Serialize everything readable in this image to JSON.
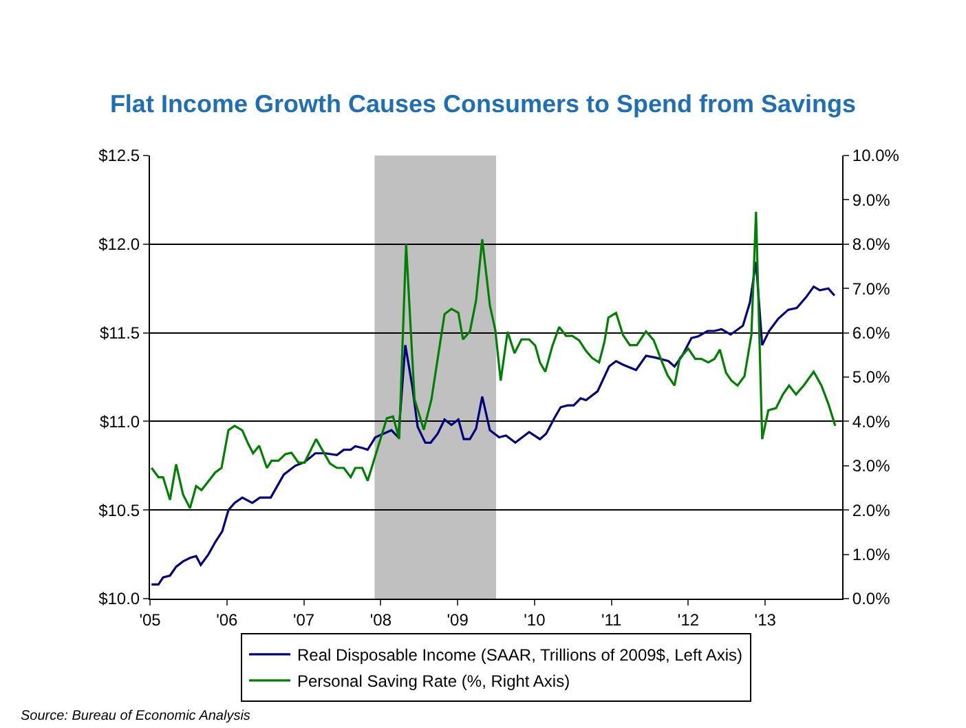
{
  "chart_data": {
    "type": "line",
    "title": "Flat Income Growth Causes Consumers to Spend from Savings",
    "xlim": [
      2005,
      2014
    ],
    "xticks": [
      {
        "value": 2005,
        "label": "'05"
      },
      {
        "value": 2006,
        "label": "'06"
      },
      {
        "value": 2007,
        "label": "'07"
      },
      {
        "value": 2008,
        "label": "'08"
      },
      {
        "value": 2009,
        "label": "'09"
      },
      {
        "value": 2010,
        "label": "'10"
      },
      {
        "value": 2011,
        "label": "'11"
      },
      {
        "value": 2012,
        "label": "'12"
      },
      {
        "value": 2013,
        "label": "'13"
      }
    ],
    "ylim": [
      10,
      12.5
    ],
    "yticks": [
      {
        "value": 10,
        "label": "$10.0"
      },
      {
        "value": 10.5,
        "label": "$10.5"
      },
      {
        "value": 11,
        "label": "$11.0"
      },
      {
        "value": 11.5,
        "label": "$11.5"
      },
      {
        "value": 12,
        "label": "$12.0"
      },
      {
        "value": 12.5,
        "label": "$12.5"
      }
    ],
    "y2lim": [
      0,
      10
    ],
    "y2ticks": [
      {
        "value": 0,
        "label": "0.0%"
      },
      {
        "value": 1,
        "label": "1.0%"
      },
      {
        "value": 2,
        "label": "2.0%"
      },
      {
        "value": 3,
        "label": "3.0%"
      },
      {
        "value": 4,
        "label": "4.0%"
      },
      {
        "value": 5,
        "label": "5.0%"
      },
      {
        "value": 6,
        "label": "6.0%"
      },
      {
        "value": 7,
        "label": "7.0%"
      },
      {
        "value": 8,
        "label": "8.0%"
      },
      {
        "value": 9,
        "label": "9.0%"
      },
      {
        "value": 10,
        "label": "10.0%"
      }
    ],
    "grid": "y",
    "legend": "bottom",
    "marker": "none",
    "line_style": "solid",
    "bands": [
      {
        "axis": "x",
        "from": 2007.92,
        "to": 2009.5,
        "color": "#c0c0c0"
      }
    ],
    "annotations": [
      "Source: Bureau of Economic Analysis"
    ],
    "series": [
      {
        "name": "Real Disposable Income (SAAR, Trillions of 2009$, Left Axis)",
        "color": "#000080",
        "x": [
          2005.02,
          2005.11,
          2005.17,
          2005.26,
          2005.34,
          2005.43,
          2005.52,
          2005.6,
          2005.66,
          2005.76,
          2005.85,
          2005.94,
          2006.02,
          2006.1,
          2006.2,
          2006.33,
          2006.43,
          2006.57,
          2006.74,
          2006.89,
          2007.01,
          2007.15,
          2007.28,
          2007.43,
          2007.52,
          2007.61,
          2007.67,
          2007.76,
          2007.83,
          2007.93,
          2008.14,
          2008.23,
          2008.32,
          2008.41,
          2008.48,
          2008.58,
          2008.65,
          2008.74,
          2008.83,
          2008.92,
          2009.01,
          2009.08,
          2009.16,
          2009.24,
          2009.32,
          2009.42,
          2009.54,
          2009.63,
          2009.75,
          2009.93,
          2010.07,
          2010.15,
          2010.26,
          2010.34,
          2010.43,
          2010.51,
          2010.6,
          2010.67,
          2010.82,
          2010.97,
          2011.06,
          2011.15,
          2011.32,
          2011.45,
          2011.57,
          2011.74,
          2011.82,
          2011.92,
          2012.04,
          2012.13,
          2012.25,
          2012.34,
          2012.43,
          2012.55,
          2012.71,
          2012.8,
          2012.88,
          2012.96,
          2013.05,
          2013.17,
          2013.3,
          2013.41,
          2013.53,
          2013.63,
          2013.71,
          2013.82,
          2013.9
        ],
        "values": [
          10.08,
          10.08,
          10.12,
          10.13,
          10.18,
          10.21,
          10.23,
          10.24,
          10.19,
          10.25,
          10.32,
          10.38,
          10.5,
          10.54,
          10.57,
          10.54,
          10.57,
          10.57,
          10.7,
          10.75,
          10.77,
          10.82,
          10.82,
          10.81,
          10.84,
          10.84,
          10.86,
          10.85,
          10.84,
          10.91,
          10.95,
          10.91,
          11.43,
          11.2,
          10.97,
          10.88,
          10.88,
          10.93,
          11.01,
          10.98,
          11.01,
          10.9,
          10.9,
          10.96,
          11.14,
          10.95,
          10.91,
          10.92,
          10.88,
          10.94,
          10.9,
          10.93,
          11.02,
          11.08,
          11.09,
          11.09,
          11.13,
          11.12,
          11.17,
          11.31,
          11.34,
          11.32,
          11.29,
          11.37,
          11.36,
          11.34,
          11.31,
          11.37,
          11.47,
          11.48,
          11.51,
          11.51,
          11.52,
          11.49,
          11.54,
          11.67,
          11.9,
          11.43,
          11.51,
          11.58,
          11.63,
          11.64,
          11.7,
          11.76,
          11.74,
          11.75,
          11.71
        ]
      },
      {
        "name": "Personal Saving Rate (%, Right Axis)",
        "color": "#008000",
        "axis": "y2",
        "x": [
          2005.02,
          2005.11,
          2005.17,
          2005.26,
          2005.34,
          2005.43,
          2005.52,
          2005.6,
          2005.67,
          2005.85,
          2005.93,
          2006.02,
          2006.1,
          2006.2,
          2006.27,
          2006.34,
          2006.42,
          2006.52,
          2006.58,
          2006.67,
          2006.76,
          2006.84,
          2006.93,
          2007.01,
          2007.16,
          2007.34,
          2007.43,
          2007.52,
          2007.61,
          2007.67,
          2007.76,
          2007.83,
          2008.08,
          2008.16,
          2008.24,
          2008.33,
          2008.44,
          2008.56,
          2008.66,
          2008.83,
          2008.92,
          2009.01,
          2009.07,
          2009.16,
          2009.24,
          2009.32,
          2009.42,
          2009.49,
          2009.56,
          2009.65,
          2009.74,
          2009.83,
          2009.93,
          2010.01,
          2010.07,
          2010.14,
          2010.23,
          2010.32,
          2010.41,
          2010.49,
          2010.58,
          2010.67,
          2010.75,
          2010.84,
          2010.91,
          2010.96,
          2011.06,
          2011.15,
          2011.24,
          2011.33,
          2011.45,
          2011.55,
          2011.66,
          2011.73,
          2011.82,
          2011.89,
          2012.0,
          2012.09,
          2012.17,
          2012.26,
          2012.34,
          2012.41,
          2012.49,
          2012.56,
          2012.64,
          2012.73,
          2012.82,
          2012.88,
          2012.96,
          2013.04,
          2013.14,
          2013.23,
          2013.31,
          2013.4,
          2013.5,
          2013.63,
          2013.73,
          2013.82,
          2013.91
        ],
        "values": [
          2.95,
          2.74,
          2.74,
          2.23,
          3.03,
          2.35,
          2.04,
          2.54,
          2.45,
          2.85,
          2.95,
          3.8,
          3.9,
          3.8,
          3.52,
          3.28,
          3.45,
          2.95,
          3.11,
          3.11,
          3.26,
          3.29,
          3.07,
          3.07,
          3.6,
          3.05,
          2.95,
          2.95,
          2.74,
          2.95,
          2.95,
          2.66,
          4.07,
          4.11,
          3.6,
          8.0,
          4.5,
          3.81,
          4.5,
          6.42,
          6.54,
          6.45,
          5.85,
          6.03,
          6.73,
          8.11,
          6.61,
          6.06,
          4.92,
          6.02,
          5.54,
          5.85,
          5.85,
          5.71,
          5.33,
          5.12,
          5.69,
          6.13,
          5.93,
          5.93,
          5.83,
          5.59,
          5.43,
          5.33,
          5.8,
          6.34,
          6.45,
          5.95,
          5.72,
          5.72,
          6.03,
          5.83,
          5.33,
          5.04,
          4.81,
          5.43,
          5.64,
          5.41,
          5.41,
          5.33,
          5.41,
          5.62,
          5.1,
          4.92,
          4.81,
          5.02,
          5.95,
          8.73,
          3.6,
          4.25,
          4.3,
          4.61,
          4.81,
          4.61,
          4.81,
          5.12,
          4.81,
          4.4,
          3.9
        ]
      }
    ]
  }
}
